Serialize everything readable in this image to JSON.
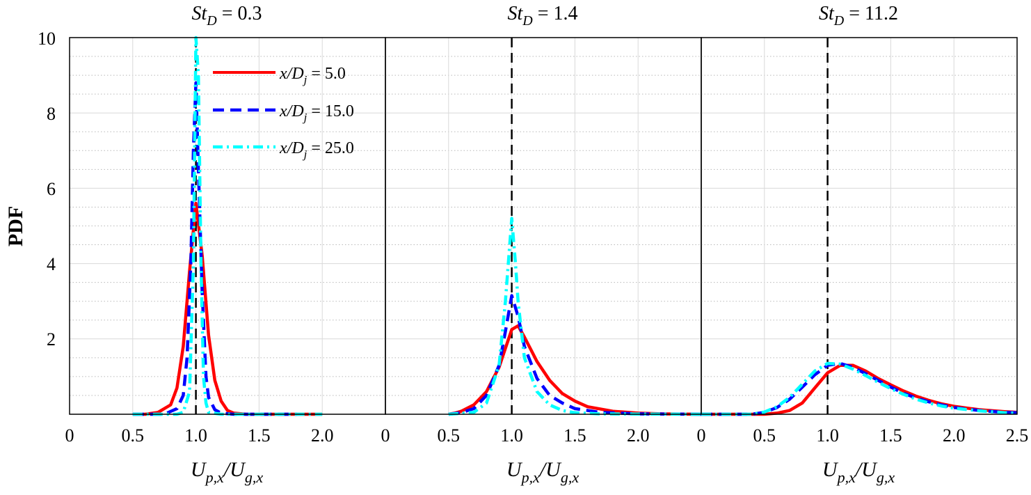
{
  "figure": {
    "ylabel": "PDF",
    "xlabel": {
      "main": "U",
      "sub1": "p,x",
      "sep": "/U",
      "sub2": "g,x"
    }
  },
  "chart_data": [
    {
      "type": "line",
      "title": {
        "main": "St",
        "sub": "D",
        "rest": " = 0.3"
      },
      "xlim": [
        0,
        2.5
      ],
      "ylim": [
        0,
        10
      ],
      "xticks": [
        0.5,
        1.0,
        1.5,
        2.0
      ],
      "xtick_labels": [
        "0.5",
        "1.0",
        "1.5",
        "2.0"
      ],
      "yticks": [
        2,
        4,
        6,
        8,
        10
      ],
      "ytick_labels": [
        "2",
        "4",
        "6",
        "8",
        "10"
      ],
      "left_corner_label": "0",
      "grid": true,
      "minor_grid_y": true,
      "reference_line_x": 1.0,
      "legend": {
        "placement": "top-right",
        "entries": [
          {
            "main": "x/D",
            "sub": "j",
            "rest": " = 5.0"
          },
          {
            "main": "x/D",
            "sub": "j",
            "rest": " = 15.0"
          },
          {
            "main": "x/D",
            "sub": "j",
            "rest": " = 25.0"
          }
        ]
      },
      "series": [
        {
          "color": "#ff0000",
          "dash": "solid",
          "points": [
            [
              0.5,
              0
            ],
            [
              0.6,
              0
            ],
            [
              0.7,
              0.05
            ],
            [
              0.8,
              0.25
            ],
            [
              0.85,
              0.7
            ],
            [
              0.9,
              1.8
            ],
            [
              0.95,
              3.8
            ],
            [
              1.0,
              5.6
            ],
            [
              1.05,
              4.2
            ],
            [
              1.1,
              2.1
            ],
            [
              1.15,
              0.9
            ],
            [
              1.2,
              0.35
            ],
            [
              1.25,
              0.1
            ],
            [
              1.3,
              0.03
            ],
            [
              1.4,
              0
            ],
            [
              2.0,
              0
            ]
          ]
        },
        {
          "color": "#0000ff",
          "dash": "dashed",
          "points": [
            [
              0.5,
              0
            ],
            [
              0.75,
              0
            ],
            [
              0.85,
              0.15
            ],
            [
              0.9,
              0.5
            ],
            [
              0.93,
              1.5
            ],
            [
              0.96,
              4.0
            ],
            [
              0.98,
              7.0
            ],
            [
              1.0,
              8.8
            ],
            [
              1.02,
              6.5
            ],
            [
              1.05,
              3.2
            ],
            [
              1.08,
              1.0
            ],
            [
              1.1,
              0.45
            ],
            [
              1.15,
              0.12
            ],
            [
              1.2,
              0.03
            ],
            [
              1.3,
              0
            ],
            [
              1.8,
              0
            ]
          ]
        },
        {
          "color": "#00ffff",
          "dash": "dashdot",
          "points": [
            [
              0.5,
              0
            ],
            [
              0.85,
              0
            ],
            [
              0.9,
              0.05
            ],
            [
              0.95,
              0.6
            ],
            [
              0.98,
              4.0
            ],
            [
              1.0,
              10.0
            ],
            [
              1.02,
              9.0
            ],
            [
              1.04,
              4.0
            ],
            [
              1.06,
              1.0
            ],
            [
              1.08,
              0.3
            ],
            [
              1.1,
              0.05
            ],
            [
              1.2,
              0
            ],
            [
              2.0,
              0
            ]
          ]
        }
      ]
    },
    {
      "type": "line",
      "title": {
        "main": "St",
        "sub": "D",
        "rest": " = 1.4"
      },
      "xlim": [
        0,
        2.5
      ],
      "ylim": [
        0,
        10
      ],
      "xticks": [
        0.5,
        1.0,
        1.5,
        2.0
      ],
      "xtick_labels": [
        "0.5",
        "1.0",
        "1.5",
        "2.0"
      ],
      "left_corner_label": "0",
      "grid": true,
      "minor_grid_y": true,
      "reference_line_x": 1.0,
      "series": [
        {
          "color": "#ff0000",
          "dash": "solid",
          "points": [
            [
              0.5,
              0
            ],
            [
              0.55,
              0.03
            ],
            [
              0.6,
              0.08
            ],
            [
              0.7,
              0.25
            ],
            [
              0.8,
              0.6
            ],
            [
              0.9,
              1.25
            ],
            [
              1.0,
              2.25
            ],
            [
              1.05,
              2.35
            ],
            [
              1.1,
              2.05
            ],
            [
              1.2,
              1.4
            ],
            [
              1.3,
              0.9
            ],
            [
              1.4,
              0.55
            ],
            [
              1.5,
              0.35
            ],
            [
              1.6,
              0.2
            ],
            [
              1.8,
              0.08
            ],
            [
              2.0,
              0.03
            ],
            [
              2.2,
              0.01
            ],
            [
              2.5,
              0
            ]
          ]
        },
        {
          "color": "#0000ff",
          "dash": "dashed",
          "points": [
            [
              0.5,
              0
            ],
            [
              0.6,
              0.04
            ],
            [
              0.7,
              0.15
            ],
            [
              0.8,
              0.5
            ],
            [
              0.9,
              1.3
            ],
            [
              0.95,
              2.2
            ],
            [
              1.0,
              3.15
            ],
            [
              1.05,
              2.6
            ],
            [
              1.1,
              1.8
            ],
            [
              1.2,
              0.95
            ],
            [
              1.3,
              0.5
            ],
            [
              1.4,
              0.3
            ],
            [
              1.5,
              0.15
            ],
            [
              1.7,
              0.05
            ],
            [
              2.0,
              0.01
            ],
            [
              2.5,
              0
            ]
          ]
        },
        {
          "color": "#00ffff",
          "dash": "dashdot",
          "points": [
            [
              0.5,
              0
            ],
            [
              0.7,
              0.05
            ],
            [
              0.8,
              0.3
            ],
            [
              0.9,
              1.3
            ],
            [
              0.95,
              3.0
            ],
            [
              1.0,
              5.2
            ],
            [
              1.03,
              4.0
            ],
            [
              1.05,
              3.0
            ],
            [
              1.1,
              1.5
            ],
            [
              1.2,
              0.6
            ],
            [
              1.3,
              0.25
            ],
            [
              1.4,
              0.1
            ],
            [
              1.5,
              0.04
            ],
            [
              1.7,
              0.01
            ],
            [
              2.5,
              0
            ]
          ]
        }
      ]
    },
    {
      "type": "line",
      "title": {
        "main": "St",
        "sub": "D",
        "rest": " = 11.2"
      },
      "xlim": [
        0,
        2.5
      ],
      "ylim": [
        0,
        10
      ],
      "xticks": [
        0.5,
        1.0,
        1.5,
        2.0,
        2.5
      ],
      "xtick_labels": [
        "0.5",
        "1.0",
        "1.5",
        "2.0",
        "2.5"
      ],
      "left_corner_label": "0",
      "grid": true,
      "minor_grid_y": true,
      "reference_line_x": 1.0,
      "series": [
        {
          "color": "#ff0000",
          "dash": "solid",
          "points": [
            [
              0,
              0
            ],
            [
              0.5,
              0
            ],
            [
              0.6,
              0.03
            ],
            [
              0.7,
              0.1
            ],
            [
              0.8,
              0.3
            ],
            [
              0.9,
              0.7
            ],
            [
              1.0,
              1.1
            ],
            [
              1.1,
              1.3
            ],
            [
              1.2,
              1.3
            ],
            [
              1.3,
              1.15
            ],
            [
              1.4,
              0.95
            ],
            [
              1.5,
              0.78
            ],
            [
              1.6,
              0.62
            ],
            [
              1.7,
              0.48
            ],
            [
              1.8,
              0.37
            ],
            [
              1.9,
              0.28
            ],
            [
              2.0,
              0.21
            ],
            [
              2.2,
              0.12
            ],
            [
              2.4,
              0.07
            ],
            [
              2.5,
              0.05
            ]
          ]
        },
        {
          "color": "#0000ff",
          "dash": "dashed",
          "points": [
            [
              0,
              0
            ],
            [
              0.4,
              0
            ],
            [
              0.5,
              0.05
            ],
            [
              0.6,
              0.18
            ],
            [
              0.7,
              0.4
            ],
            [
              0.8,
              0.72
            ],
            [
              0.9,
              1.05
            ],
            [
              1.0,
              1.3
            ],
            [
              1.1,
              1.35
            ],
            [
              1.2,
              1.25
            ],
            [
              1.3,
              1.08
            ],
            [
              1.4,
              0.9
            ],
            [
              1.5,
              0.72
            ],
            [
              1.6,
              0.56
            ],
            [
              1.7,
              0.43
            ],
            [
              1.8,
              0.33
            ],
            [
              1.9,
              0.25
            ],
            [
              2.0,
              0.18
            ],
            [
              2.2,
              0.1
            ],
            [
              2.4,
              0.05
            ],
            [
              2.5,
              0.04
            ]
          ]
        },
        {
          "color": "#00ffff",
          "dash": "dashdot",
          "points": [
            [
              0,
              0
            ],
            [
              0.4,
              0
            ],
            [
              0.5,
              0.06
            ],
            [
              0.6,
              0.2
            ],
            [
              0.7,
              0.45
            ],
            [
              0.8,
              0.8
            ],
            [
              0.9,
              1.15
            ],
            [
              1.0,
              1.35
            ],
            [
              1.1,
              1.33
            ],
            [
              1.2,
              1.2
            ],
            [
              1.3,
              1.03
            ],
            [
              1.4,
              0.85
            ],
            [
              1.5,
              0.68
            ],
            [
              1.6,
              0.53
            ],
            [
              1.7,
              0.4
            ],
            [
              1.8,
              0.3
            ],
            [
              1.9,
              0.22
            ],
            [
              2.0,
              0.16
            ],
            [
              2.2,
              0.09
            ],
            [
              2.4,
              0.04
            ],
            [
              2.5,
              0.03
            ]
          ]
        }
      ]
    }
  ]
}
